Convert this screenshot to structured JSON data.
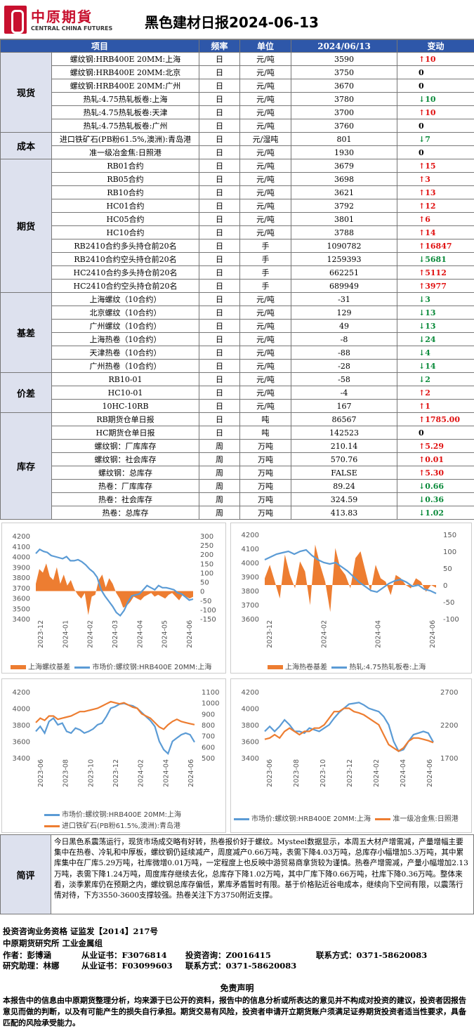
{
  "header": {
    "logo_cn": "中原期貨",
    "logo_en": "CENTRAL CHINA FUTURES",
    "title": "黑色建材日报2024-06-13"
  },
  "table": {
    "headers": [
      "项目",
      "频率",
      "单位",
      "2024/06/13",
      "变动"
    ],
    "groups": [
      {
        "name": "现货",
        "rows": [
          {
            "item": "螺纹钢:HRB400E 20MM:上海",
            "freq": "日",
            "unit": "元/吨",
            "value": "3590",
            "dir": "up",
            "change": "10"
          },
          {
            "item": "螺纹钢:HRB400E 20MM:北京",
            "freq": "日",
            "unit": "元/吨",
            "value": "3750",
            "dir": "zero",
            "change": "0"
          },
          {
            "item": "螺纹钢:HRB400E 20MM:广州",
            "freq": "日",
            "unit": "元/吨",
            "value": "3670",
            "dir": "zero",
            "change": "0"
          },
          {
            "item": "热轧:4.75热轧板卷:上海",
            "freq": "日",
            "unit": "元/吨",
            "value": "3780",
            "dir": "down",
            "change": "10"
          },
          {
            "item": "热轧:4.75热轧板卷:天津",
            "freq": "日",
            "unit": "元/吨",
            "value": "3700",
            "dir": "up",
            "change": "10"
          },
          {
            "item": "热轧:4.75热轧板卷:广州",
            "freq": "日",
            "unit": "元/吨",
            "value": "3760",
            "dir": "zero",
            "change": "0"
          }
        ]
      },
      {
        "name": "成本",
        "rows": [
          {
            "item": "进口铁矿石(PB粉61.5%,澳洲):青岛港",
            "freq": "日",
            "unit": "元/湿吨",
            "value": "801",
            "dir": "down",
            "change": "7"
          },
          {
            "item": "准一级冶金焦:日照港",
            "freq": "日",
            "unit": "元/吨",
            "value": "1930",
            "dir": "zero",
            "change": "0"
          }
        ]
      },
      {
        "name": "期货",
        "rows": [
          {
            "item": "RB01合约",
            "freq": "日",
            "unit": "元/吨",
            "value": "3679",
            "dir": "up",
            "change": "15"
          },
          {
            "item": "RB05合约",
            "freq": "日",
            "unit": "元/吨",
            "value": "3698",
            "dir": "up",
            "change": "3"
          },
          {
            "item": "RB10合约",
            "freq": "日",
            "unit": "元/吨",
            "value": "3621",
            "dir": "up",
            "change": "13"
          },
          {
            "item": "HC01合约",
            "freq": "日",
            "unit": "元/吨",
            "value": "3792",
            "dir": "up",
            "change": "12"
          },
          {
            "item": "HC05合约",
            "freq": "日",
            "unit": "元/吨",
            "value": "3801",
            "dir": "up",
            "change": "6"
          },
          {
            "item": "HC10合约",
            "freq": "日",
            "unit": "元/吨",
            "value": "3788",
            "dir": "up",
            "change": "14"
          },
          {
            "item": "RB2410合约多头持仓前20名",
            "freq": "日",
            "unit": "手",
            "value": "1090782",
            "dir": "up",
            "change": "16847"
          },
          {
            "item": "RB2410合约空头持仓前20名",
            "freq": "日",
            "unit": "手",
            "value": "1259393",
            "dir": "down",
            "change": "5681"
          },
          {
            "item": "HC2410合约多头持仓前20名",
            "freq": "日",
            "unit": "手",
            "value": "662251",
            "dir": "up",
            "change": "5112"
          },
          {
            "item": "HC2410合约空头持仓前20名",
            "freq": "日",
            "unit": "手",
            "value": "689949",
            "dir": "up",
            "change": "3977"
          }
        ]
      },
      {
        "name": "基差",
        "rows": [
          {
            "item": "上海螺纹（10合约）",
            "freq": "日",
            "unit": "元/吨",
            "value": "-31",
            "dir": "down",
            "change": "3"
          },
          {
            "item": "北京螺纹（10合约）",
            "freq": "日",
            "unit": "元/吨",
            "value": "129",
            "dir": "down",
            "change": "13"
          },
          {
            "item": "广州螺纹（10合约）",
            "freq": "日",
            "unit": "元/吨",
            "value": "49",
            "dir": "down",
            "change": "13"
          },
          {
            "item": "上海热卷（10合约）",
            "freq": "日",
            "unit": "元/吨",
            "value": "-8",
            "dir": "down",
            "change": "24"
          },
          {
            "item": "天津热卷（10合约）",
            "freq": "日",
            "unit": "元/吨",
            "value": "-88",
            "dir": "down",
            "change": "4"
          },
          {
            "item": "广州热卷（10合约）",
            "freq": "日",
            "unit": "元/吨",
            "value": "-28",
            "dir": "down",
            "change": "14"
          }
        ]
      },
      {
        "name": "价差",
        "rows": [
          {
            "item": "RB10-01",
            "freq": "日",
            "unit": "元/吨",
            "value": "-58",
            "dir": "down",
            "change": "2"
          },
          {
            "item": "HC10-01",
            "freq": "日",
            "unit": "元/吨",
            "value": "-4",
            "dir": "up",
            "change": "2"
          },
          {
            "item": "10HC-10RB",
            "freq": "日",
            "unit": "元/吨",
            "value": "167",
            "dir": "up",
            "change": "1"
          }
        ]
      },
      {
        "name": "库存",
        "rows": [
          {
            "item": "RB期货仓单日报",
            "freq": "日",
            "unit": "吨",
            "value": "86567",
            "dir": "up",
            "change": "1785.00"
          },
          {
            "item": "HC期货仓单日报",
            "freq": "日",
            "unit": "吨",
            "value": "142523",
            "dir": "zero",
            "change": "0"
          },
          {
            "item": "螺纹钢：厂库库存",
            "freq": "周",
            "unit": "万吨",
            "value": "210.14",
            "dir": "up",
            "change": "5.29"
          },
          {
            "item": "螺纹钢：社会库存",
            "freq": "周",
            "unit": "万吨",
            "value": "570.76",
            "dir": "up",
            "change": "0.01"
          },
          {
            "item": "螺纹钢：总库存",
            "freq": "周",
            "unit": "万吨",
            "value": "FALSE",
            "dir": "up",
            "change": "5.30"
          },
          {
            "item": "热卷：厂库库存",
            "freq": "周",
            "unit": "万吨",
            "value": "89.24",
            "dir": "down",
            "change": "0.66"
          },
          {
            "item": "热卷：社会库存",
            "freq": "周",
            "unit": "万吨",
            "value": "324.59",
            "dir": "down",
            "change": "0.36"
          },
          {
            "item": "热卷：总库存",
            "freq": "周",
            "unit": "万吨",
            "value": "413.83",
            "dir": "down",
            "change": "1.02"
          }
        ]
      }
    ]
  },
  "chart_data": [
    {
      "type": "line",
      "left_ylim": [
        3400,
        4200
      ],
      "left_ticks": [
        "4200",
        "4100",
        "4000",
        "3900",
        "3800",
        "3700",
        "3600",
        "3500",
        "3400"
      ],
      "right_ylim": [
        -150,
        300
      ],
      "right_ticks": [
        "300",
        "250",
        "200",
        "150",
        "100",
        "50",
        "0",
        "-50",
        "-100",
        "-150"
      ],
      "x_ticks": [
        "2023-12",
        "2024-01",
        "2024-02",
        "2024-03",
        "2024-04",
        "2024-05",
        "2024-06"
      ],
      "series": [
        {
          "name": "上海螺纹基差",
          "kind": "area",
          "axis": "right",
          "color": "#ed7d31",
          "values": [
            40,
            120,
            100,
            150,
            80,
            60,
            130,
            40,
            90,
            30,
            60,
            10,
            -20,
            -40,
            -10,
            -130,
            -30,
            -20,
            60,
            90,
            20,
            70,
            40,
            -10,
            -40,
            -90,
            -80,
            -60,
            -30,
            -40,
            -50,
            -30,
            -20,
            -10,
            -30,
            -20,
            -30,
            -40,
            -20,
            -10,
            -30,
            -50,
            -20,
            -30,
            -40,
            -31
          ]
        },
        {
          "name": "市场价:螺纹钢:HRB400E 20MM:上海",
          "kind": "line",
          "axis": "left",
          "color": "#5b9bd5",
          "values": [
            4030,
            4070,
            4050,
            4040,
            4010,
            4000,
            3990,
            3980,
            4000,
            3960,
            3960,
            3970,
            3950,
            3920,
            3880,
            3850,
            3800,
            3680,
            3620,
            3570,
            3520,
            3460,
            3430,
            3480,
            3560,
            3620,
            3630,
            3640,
            3680,
            3720,
            3700,
            3680,
            3720,
            3700,
            3700,
            3690,
            3680,
            3650,
            3640,
            3610,
            3580,
            3590
          ]
        }
      ]
    },
    {
      "type": "line",
      "left_ylim": [
        3600,
        4200
      ],
      "left_ticks": [
        "4200",
        "4100",
        "4000",
        "3900",
        "3800",
        "3700",
        "3600"
      ],
      "right_ylim": [
        -100,
        150
      ],
      "right_ticks": [
        "150",
        "100",
        "50",
        "0",
        "-50",
        "-100"
      ],
      "x_ticks": [
        "2023-12",
        "2024-02",
        "2024-04",
        "2024-06"
      ],
      "series": [
        {
          "name": "上海热卷基差",
          "kind": "area",
          "axis": "right",
          "color": "#ed7d31",
          "values": [
            20,
            60,
            10,
            -40,
            90,
            30,
            -10,
            70,
            40,
            -60,
            120,
            60,
            10,
            -80,
            110,
            50,
            30,
            -10,
            80,
            100,
            40,
            -20,
            60,
            20,
            10,
            -30,
            30,
            20,
            0,
            -10,
            20,
            10,
            -20,
            0,
            -8
          ]
        },
        {
          "name": "热轧:4.75热轧板卷:上海",
          "kind": "line",
          "axis": "left",
          "color": "#5b9bd5",
          "values": [
            4020,
            4040,
            4060,
            4070,
            4080,
            4060,
            4080,
            4090,
            4050,
            4020,
            4000,
            3990,
            4000,
            3970,
            3940,
            3900,
            3860,
            3830,
            3800,
            3790,
            3820,
            3850,
            3870,
            3880,
            3860,
            3830,
            3840,
            3810,
            3800,
            3780
          ]
        }
      ]
    },
    {
      "type": "line",
      "left_ylim": [
        3400,
        4200
      ],
      "left_ticks": [
        "4200",
        "4000",
        "3800",
        "3600",
        "3400"
      ],
      "right_ylim": [
        500,
        1100
      ],
      "right_ticks": [
        "1100",
        "1000",
        "900",
        "800",
        "700",
        "600",
        "500"
      ],
      "x_ticks": [
        "2023-06",
        "2023-08",
        "2023-10",
        "2023-12",
        "2024-02",
        "2024-04",
        "2024-06"
      ],
      "series": [
        {
          "name": "市场价:螺纹钢:HRB400E 20MM:上海",
          "kind": "line",
          "axis": "left",
          "color": "#5b9bd5",
          "values": [
            3720,
            3780,
            3700,
            3840,
            3880,
            3800,
            3820,
            3720,
            3700,
            3760,
            3740,
            3700,
            3720,
            3750,
            3800,
            3820,
            3900,
            4000,
            4020,
            4050,
            4060,
            4040,
            4030,
            4000,
            3950,
            3900,
            3850,
            3780,
            3600,
            3500,
            3450,
            3600,
            3640,
            3680,
            3700,
            3680,
            3590
          ]
        },
        {
          "name": "进口铁矿石(PB粉61.5%,澳洲):青岛港",
          "kind": "line",
          "axis": "right",
          "color": "#ed7d31",
          "values": [
            820,
            860,
            840,
            880,
            880,
            850,
            860,
            870,
            880,
            900,
            920,
            920,
            930,
            940,
            950,
            970,
            990,
            1010,
            1000,
            990,
            1000,
            980,
            960,
            950,
            900,
            880,
            860,
            820,
            780,
            760,
            800,
            830,
            850,
            830,
            820,
            810,
            801
          ]
        }
      ]
    },
    {
      "type": "line",
      "left_ylim": [
        3400,
        4200
      ],
      "left_ticks": [
        "4200",
        "4000",
        "3800",
        "3600",
        "3400"
      ],
      "right_ylim": [
        1700,
        2700
      ],
      "right_ticks": [
        "2700",
        "2200",
        "1700"
      ],
      "x_ticks": [
        "2023-06",
        "2023-08",
        "2023-10",
        "2023-12",
        "2024-02",
        "2024-04",
        "2024-06"
      ],
      "series": [
        {
          "name": "市场价:螺纹钢:HRB400E 20MM:上海",
          "kind": "line",
          "axis": "left",
          "color": "#5b9bd5",
          "values": [
            3720,
            3780,
            3720,
            3780,
            3860,
            3800,
            3720,
            3720,
            3700,
            3760,
            3740,
            3720,
            3760,
            3800,
            3880,
            3950,
            4000,
            4050,
            4060,
            4070,
            4040,
            4000,
            3980,
            3960,
            3900,
            3800,
            3600,
            3480,
            3500,
            3600,
            3680,
            3700,
            3720,
            3700,
            3590
          ]
        },
        {
          "name": "准一级冶金焦:日照港",
          "kind": "line",
          "axis": "right",
          "color": "#ed7d31",
          "values": [
            1980,
            2000,
            2050,
            2000,
            2100,
            2150,
            2100,
            2050,
            2100,
            2100,
            2150,
            2150,
            2200,
            2300,
            2400,
            2400,
            2450,
            2450,
            2400,
            2380,
            2350,
            2300,
            2250,
            2200,
            2050,
            1900,
            1850,
            1800,
            1850,
            1950,
            2000,
            2000,
            1980,
            1960,
            1930
          ]
        }
      ]
    }
  ],
  "commentary": {
    "label": "简评",
    "text": "今日黑色系震荡运行，现货市场成交略有好转，热卷报价好于螺纹。Mysteel数据显示，本周五大材产增需减，产量增幅主要集中在热卷、冷轧和中厚板，螺纹钢仍延续减产，周度减产0.66万吨，表需下降4.03万吨，总库存小幅增加5.3万吨，其中累库集中在厂库5.29万吨，社库微增0.01万吨，一定程度上也反映中游贸易商拿货较为谨慎。热卷产增需减，产量小幅增加2.13万吨，表需下降1.24万吨，周度库存继续去化，总库存下降1.02万吨，其中厂库下降0.66万吨，社库下降0.36万吨。整体来看，淡季累库仍在预期之内，螺纹钢总库存偏低，累库矛盾暂时有限。基于价格贴近谷电成本，继续向下空间有限，以震荡行情对待，下方3550-3600支撑较强。热卷关注下方3750附近支撑。"
  },
  "footer": {
    "line1": "投资咨询业务资格   证监发【2014】217号",
    "line2": "中原期货研究所    工业金属组",
    "author_label": "作者：彭博涵",
    "cert1_label": "从业证书：F3076814",
    "advisory1": "投资咨询：Z0016415",
    "contact1": "联系方式：0371-58620083",
    "assistant_label": "研究助理：林娜",
    "cert2_label": "从业证书：F03099603",
    "contact2": "联系方式：0371-58620083"
  },
  "disclaimer": {
    "title": "免责声明",
    "text": "本报告中的信息由中原期货整理分析，均来源于已公开的资料，报告中的信息分析或所表达的意见并不构成对投资的建议，投资者因报告意见而做的判断，以及有可能产生的损失自行承担。期货交易有风险，投资者申请开立期货账户须满足证券期货投资者适当性要求，具备匹配的风险承受能力。"
  }
}
